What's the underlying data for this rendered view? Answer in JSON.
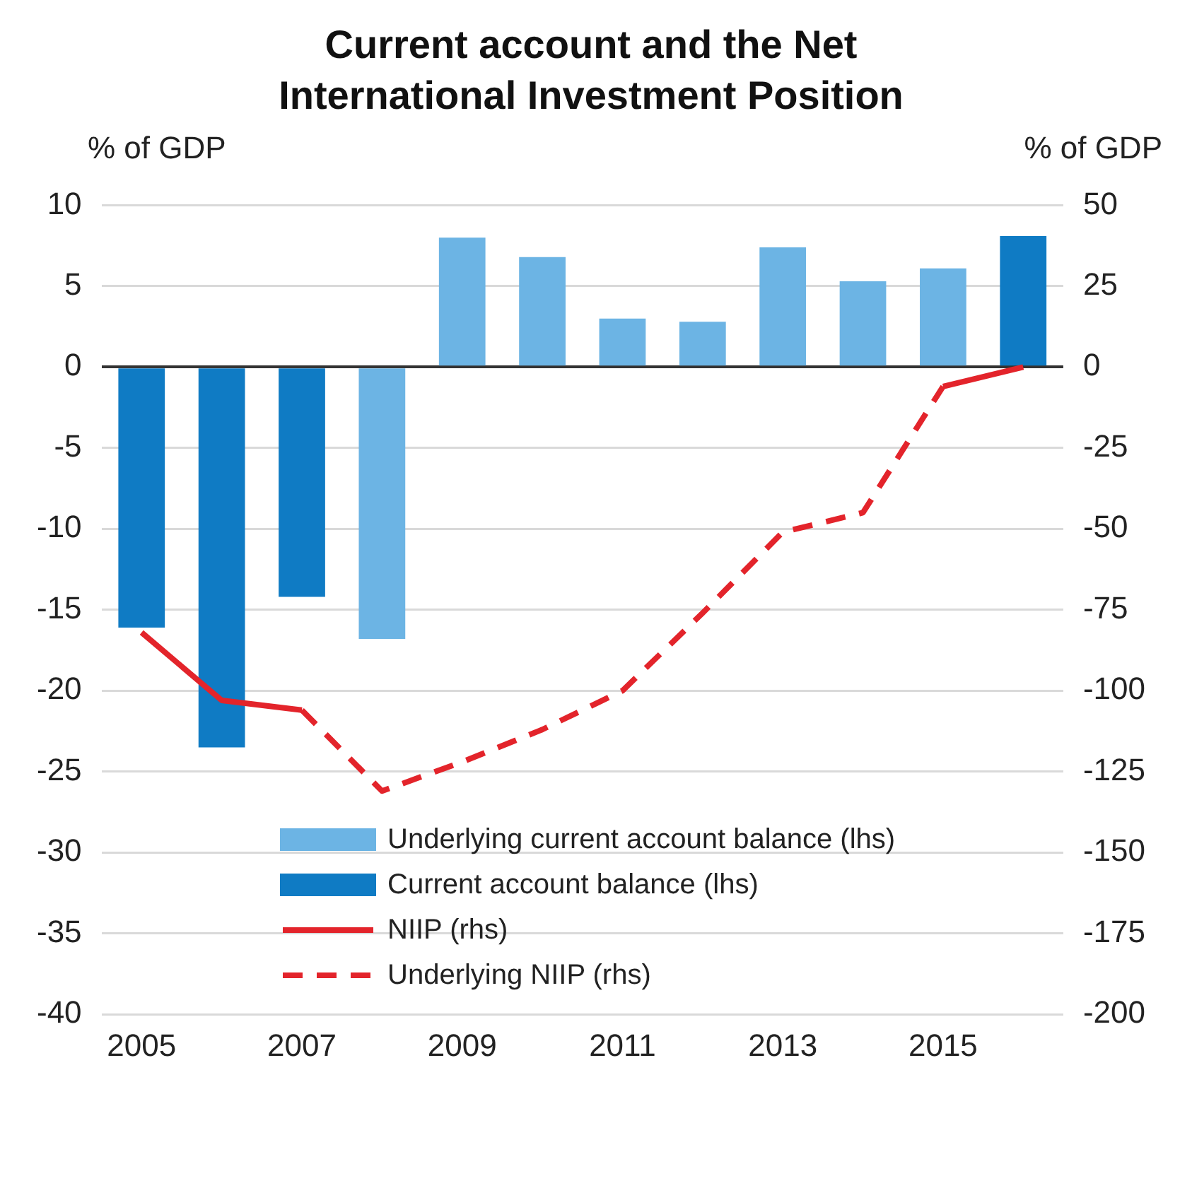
{
  "chart_data": {
    "type": "bar",
    "title": "Current account and the Net International Investment Position",
    "ylabel": "% of GDP",
    "y2label": "% of GDP",
    "categories": [
      "2005",
      null,
      "2007",
      null,
      "2009",
      null,
      "2011",
      null,
      "2013",
      null,
      "2015",
      null
    ],
    "series": [
      {
        "name": "Underlying current account balance (lhs)",
        "color": "#6cb4e4",
        "values": [
          null,
          null,
          null,
          -16.8,
          8.0,
          6.8,
          3.0,
          2.8,
          7.4,
          5.3,
          6.1,
          null
        ]
      },
      {
        "name": "Current account balance (lhs)",
        "color": "#0f7bc4",
        "values": [
          -16.1,
          -23.5,
          -14.2,
          null,
          null,
          null,
          null,
          null,
          null,
          null,
          null,
          8.1
        ]
      },
      {
        "name": "NIIP (rhs)",
        "type": "line",
        "axis": "y2",
        "line_style": "solid",
        "color": "#e3242b",
        "values": [
          -82,
          -103,
          -106,
          null,
          null,
          null,
          null,
          null,
          null,
          null,
          -6,
          0
        ]
      },
      {
        "name": "Underlying NIIP (rhs)",
        "type": "line",
        "axis": "y2",
        "line_style": "dashed",
        "color": "#e3242b",
        "values": [
          null,
          null,
          -106,
          -131,
          -122,
          -112,
          -100,
          -76,
          -51,
          -45,
          -6,
          null
        ]
      }
    ],
    "ylim": [
      -40,
      10
    ],
    "yticks": [
      -40,
      -35,
      -30,
      -25,
      -20,
      -15,
      -10,
      -5,
      0,
      5,
      10
    ],
    "y2lim": [
      -200,
      50
    ],
    "y2ticks": [
      -200,
      -175,
      -150,
      -125,
      -100,
      -75,
      -50,
      -25,
      0,
      25,
      50
    ],
    "grid": "y",
    "legend": "bottom left",
    "marker": "none"
  }
}
